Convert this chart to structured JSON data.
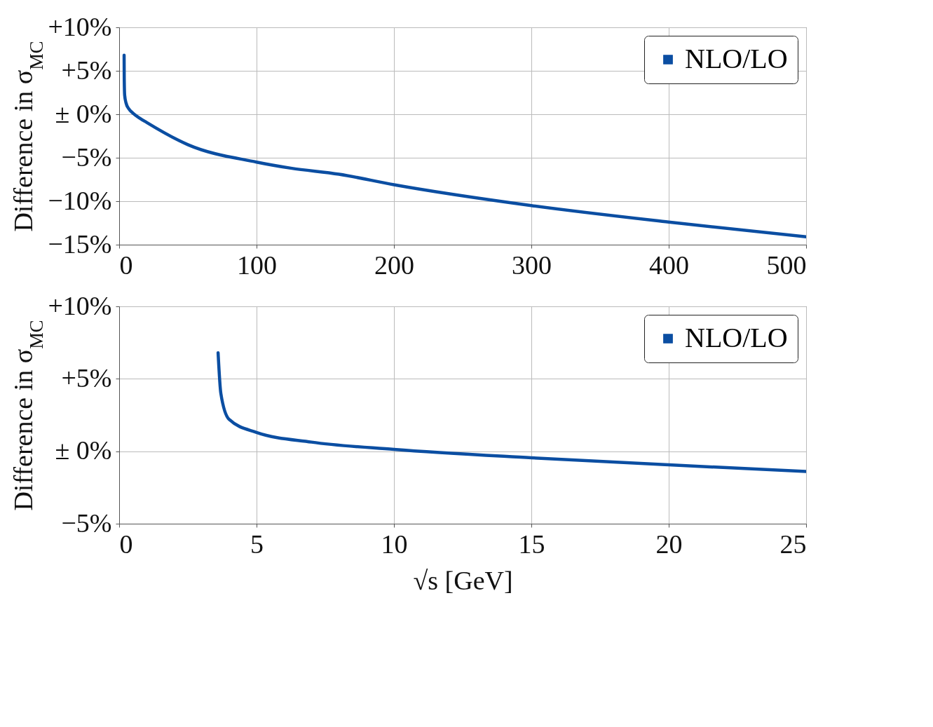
{
  "chart_data": [
    {
      "type": "line",
      "ylabel": "Difference in σ$_{MC}$",
      "x": [
        3.6,
        3.7,
        4,
        5,
        7,
        10,
        15,
        20,
        50,
        100,
        125,
        160,
        200,
        300,
        400,
        500
      ],
      "series": [
        {
          "name": "NLO/LO",
          "color": "#0b4ea2",
          "values": [
            6.8,
            4.0,
            2.2,
            1.3,
            0.63,
            0.13,
            -0.45,
            -0.94,
            -3.5,
            -5.5,
            -6.2,
            -6.9,
            -8.1,
            -10.5,
            -12.4,
            -14.1
          ]
        }
      ],
      "xlim": [
        0,
        500
      ],
      "xticks": [
        0,
        100,
        200,
        300,
        400,
        500
      ],
      "ylim": [
        -15,
        10
      ],
      "yticks": [
        {
          "value": 10,
          "label": "+10%"
        },
        {
          "value": 5,
          "label": "+5%"
        },
        {
          "value": 0,
          "label": "± 0%"
        },
        {
          "value": -5,
          "label": "−5%"
        },
        {
          "value": -10,
          "label": "−10%"
        },
        {
          "value": -15,
          "label": "−15%"
        }
      ],
      "grid": true,
      "legend": "top right"
    },
    {
      "type": "line",
      "ylabel": "Difference in σ$_{MC}$",
      "xlabel": "√s [GeV]",
      "x": [
        3.6,
        3.7,
        4,
        5,
        7,
        10,
        15,
        20,
        25
      ],
      "series": [
        {
          "name": "NLO/LO",
          "color": "#0b4ea2",
          "values": [
            6.8,
            4.0,
            2.2,
            1.3,
            0.63,
            0.13,
            -0.45,
            -0.94,
            -1.39
          ]
        }
      ],
      "xlim": [
        0,
        25
      ],
      "xticks": [
        0,
        5,
        10,
        15,
        20,
        25
      ],
      "ylim": [
        -5,
        10
      ],
      "yticks": [
        {
          "value": 10,
          "label": "+10%"
        },
        {
          "value": 5,
          "label": "+5%"
        },
        {
          "value": 0,
          "label": "± 0%"
        },
        {
          "value": -5,
          "label": "−5%"
        }
      ],
      "grid": true,
      "legend": "top right"
    }
  ]
}
